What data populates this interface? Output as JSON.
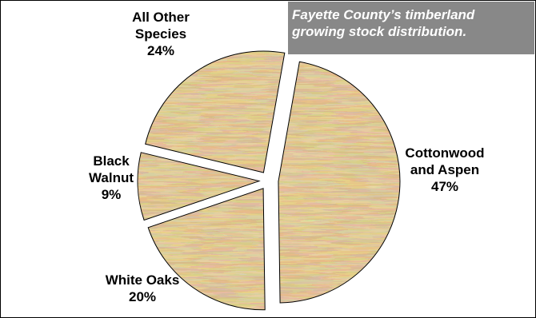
{
  "chart_data": {
    "type": "pie",
    "title_lines": [
      "Fayette County’s timberland",
      "growing stock distribution."
    ],
    "slices": [
      {
        "label_lines": [
          "Cottonwood",
          "and Aspen"
        ],
        "value": 47,
        "value_text": "47%"
      },
      {
        "label_lines": [
          "White Oaks"
        ],
        "value": 20,
        "value_text": "20%"
      },
      {
        "label_lines": [
          "Black",
          "Walnut"
        ],
        "value": 9,
        "value_text": "9%"
      },
      {
        "label_lines": [
          "All Other",
          "Species"
        ],
        "value": 24,
        "value_text": "24%"
      }
    ],
    "legend": "none",
    "fill_style": "wood-grain",
    "colors": {
      "wood_base": "#c49a52",
      "wood_dark": "#8a6426",
      "wood_light": "#dfbb76",
      "title_bg": "#888888",
      "title_text": "#ffffff"
    }
  }
}
